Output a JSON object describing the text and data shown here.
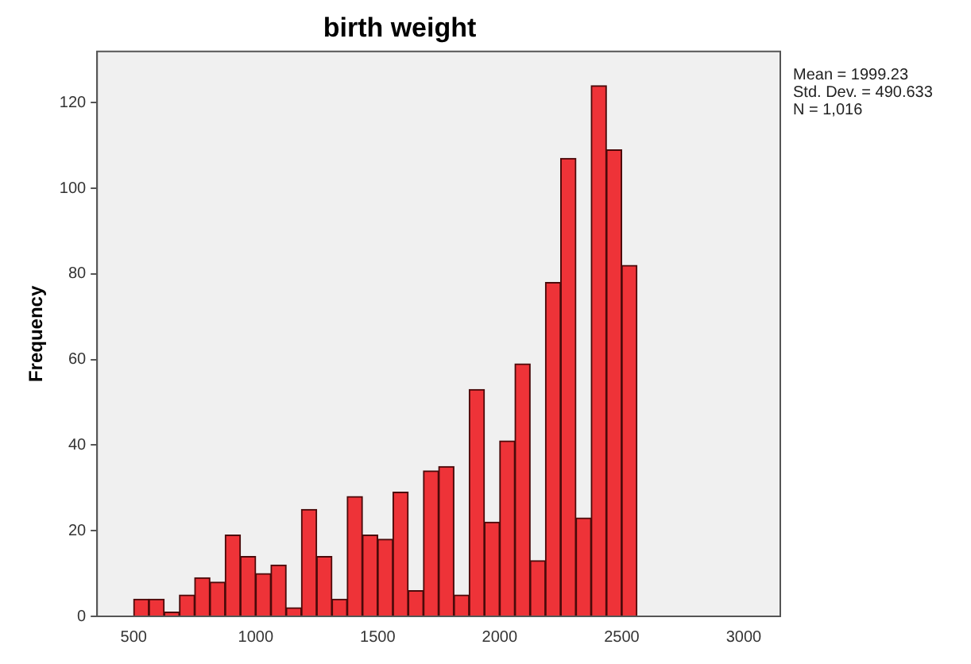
{
  "chart_data": {
    "type": "histogram",
    "title": "birth weight",
    "ylabel": "Frequency",
    "bins": [
      500,
      562.5,
      625,
      687.5,
      750,
      812.5,
      875,
      937.5,
      1000,
      1062.5,
      1125,
      1187.5,
      1250,
      1312.5,
      1375,
      1437.5,
      1500,
      1562.5,
      1625,
      1687.5,
      1750,
      1812.5,
      1875,
      1937.5,
      2000,
      2062.5,
      2125,
      2187.5,
      2250,
      2312.5,
      2375,
      2437.5,
      2500,
      2562.5
    ],
    "values": [
      4,
      4,
      1,
      5,
      9,
      8,
      19,
      14,
      10,
      12,
      2,
      25,
      14,
      4,
      28,
      19,
      18,
      29,
      6,
      34,
      35,
      5,
      53,
      22,
      41,
      59,
      13,
      78,
      107,
      23,
      124,
      109,
      82
    ],
    "color": "#ee3338",
    "xlim": [
      350,
      3150
    ],
    "xticks": [
      500,
      1000,
      1500,
      2000,
      2500,
      3000
    ],
    "ylim": [
      0,
      132
    ],
    "yticks": [
      0,
      20,
      40,
      60,
      80,
      100,
      120
    ],
    "grid": false,
    "legend": false,
    "annotations": [
      "Mean = 1999.23",
      "Std. Dev. = 490.633",
      "N = 1,016"
    ]
  }
}
